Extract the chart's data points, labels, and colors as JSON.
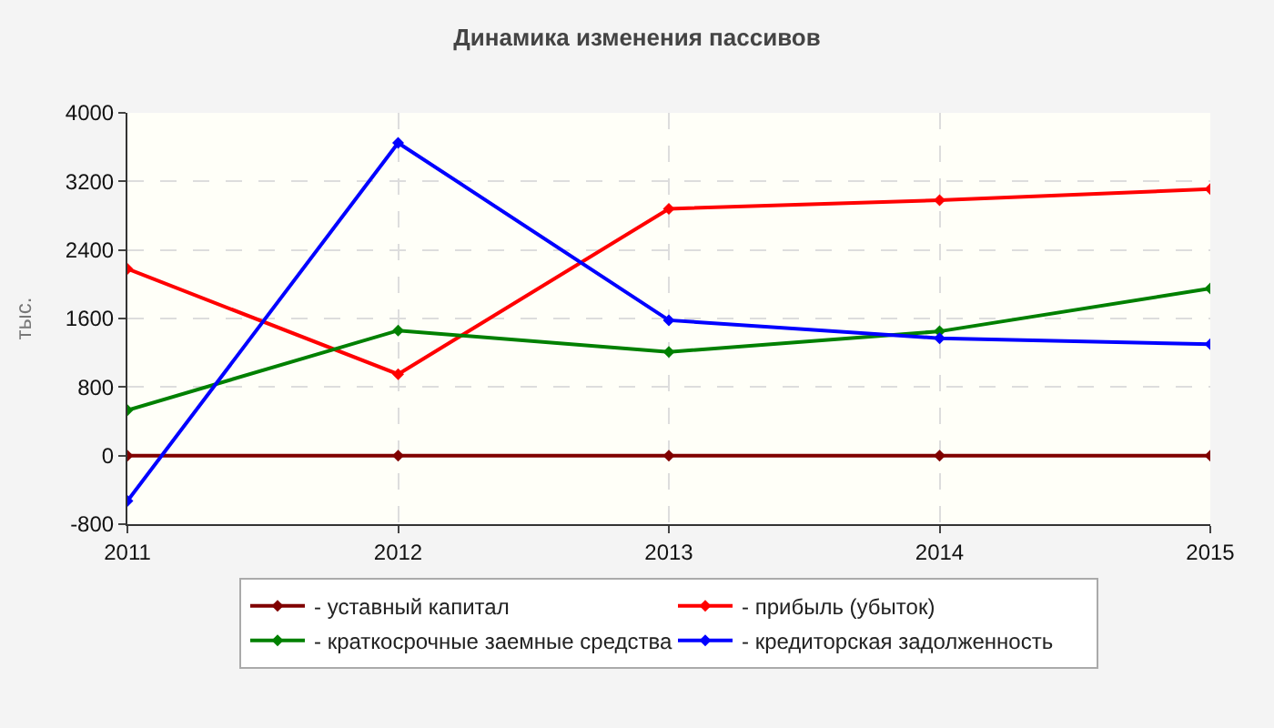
{
  "chart_data": {
    "type": "line",
    "title": "Динамика изменения пассивов",
    "ylabel": "тыс.",
    "x": [
      2011,
      2012,
      2013,
      2014,
      2015
    ],
    "series": [
      {
        "name": "- уставный капитал",
        "color": "#800000",
        "values": [
          0,
          0,
          0,
          0,
          0
        ]
      },
      {
        "name": "- прибыль (убыток)",
        "color": "#ff0000",
        "values": [
          2180,
          950,
          2880,
          2980,
          3110
        ]
      },
      {
        "name": "- краткосрочные заемные средства",
        "color": "#008000",
        "values": [
          530,
          1460,
          1210,
          1450,
          1950
        ]
      },
      {
        "name": "- кредиторская задолженность",
        "color": "#0000ff",
        "values": [
          -530,
          3650,
          1580,
          1370,
          1300
        ]
      }
    ],
    "xlim": [
      2011,
      2015
    ],
    "xticks": [
      2011,
      2012,
      2013,
      2014,
      2015
    ],
    "ylim": [
      -800,
      4000
    ],
    "yticks": [
      -800,
      0,
      800,
      1600,
      2400,
      3200,
      4000
    ],
    "grid": true,
    "legend": "bottom",
    "marker": "diamond",
    "line_style": "solid"
  }
}
